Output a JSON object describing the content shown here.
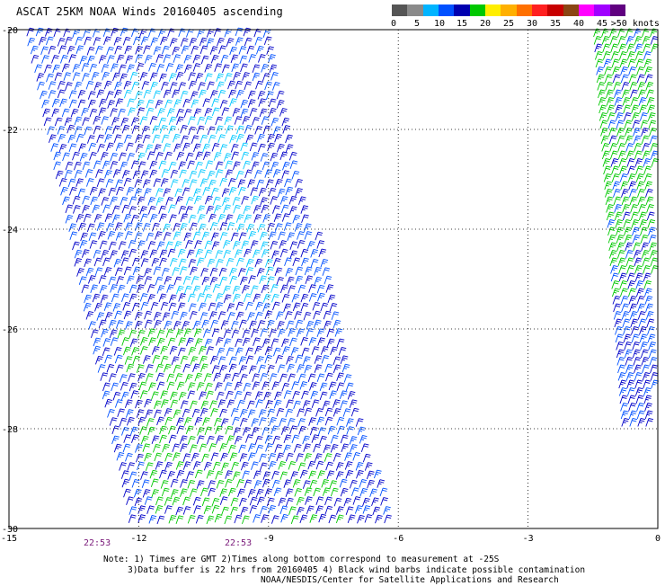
{
  "title": "ASCAT 25KM NOAA Winds 20160405 ascending",
  "colorbar": {
    "colors": [
      "#555555",
      "#8a8a8a",
      "#00b4ff",
      "#0050ff",
      "#0000b0",
      "#00c800",
      "#ffee00",
      "#ffb000",
      "#ff7000",
      "#ff2020",
      "#c80000",
      "#8b4513",
      "#ff00ff",
      "#a000ff",
      "#600080"
    ],
    "labels": [
      "0",
      "5",
      "10",
      "15",
      "20",
      "25",
      "30",
      "35",
      "40",
      "45",
      ">50 knots"
    ]
  },
  "chart_data": {
    "type": "map",
    "lon_range": [
      -15,
      0
    ],
    "lat_range": [
      -30,
      -20
    ],
    "grid": true,
    "x_ticks": [
      "-15",
      "-12",
      "-9",
      "-6",
      "-3",
      "0"
    ],
    "y_ticks": [
      "-20",
      "-22",
      "-24",
      "-26",
      "-28",
      "-30"
    ],
    "barb_colors": {
      "blue": "#0000c8",
      "medium_blue": "#0050ff",
      "cyan": "#00c8ff",
      "green": "#00c800"
    }
  },
  "time_labels": [
    "22:53",
    "22:53"
  ],
  "notes": [
    "Note: 1) Times are GMT 2)Times along bottom correspond to measurement at -25S",
    "3)Data buffer is 22 hrs from 20160405 4) Black wind barbs indicate possible contamination",
    "NOAA/NESDIS/Center for Satellite Applications and Research"
  ]
}
